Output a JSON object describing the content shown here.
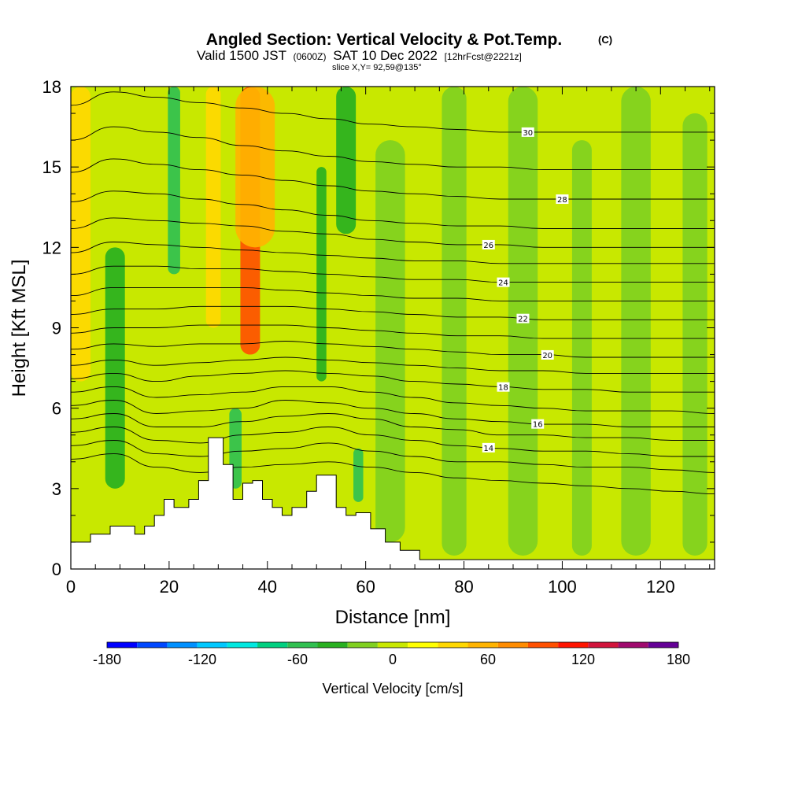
{
  "chart_data": {
    "type": "heatmap",
    "title": "Angled Section: Vertical Velocity & Pot.Temp.",
    "title_unit": "(C)",
    "subtitle_parts": [
      "Valid 1500 JST",
      "(0600Z)",
      "SAT 10 Dec 2022",
      "[12hrFcst@2221z]"
    ],
    "slice_text": "slice X,Y= 92,59@135°",
    "xlabel": "Distance [nm]",
    "ylabel": "Height [Kft MSL]",
    "xlim": [
      0,
      131
    ],
    "ylim": [
      0,
      18
    ],
    "x_ticks": [
      0,
      20,
      40,
      60,
      80,
      100,
      120
    ],
    "y_ticks": [
      0,
      3,
      6,
      9,
      12,
      15,
      18
    ],
    "grid": false,
    "colorbar": {
      "label": "Vertical Velocity [cm/s]",
      "ticks": [
        -180,
        -120,
        -60,
        0,
        60,
        120,
        180
      ],
      "levels": [
        -180,
        -160,
        -140,
        -120,
        -100,
        -80,
        -60,
        -40,
        -20,
        0,
        20,
        40,
        60,
        80,
        100,
        120,
        140,
        160,
        180
      ],
      "colors": [
        "#0000ff",
        "#0048ff",
        "#0090ff",
        "#00c8ff",
        "#00e8e0",
        "#00d080",
        "#30c050",
        "#28b020",
        "#80d020",
        "#c8e800",
        "#ffff00",
        "#ffd800",
        "#ffb400",
        "#ff8c00",
        "#ff5000",
        "#ff1400",
        "#d2143c",
        "#a00a6e",
        "#640096"
      ]
    },
    "terrain_kft": {
      "x": [
        0,
        4,
        8,
        13,
        15,
        17,
        19,
        21,
        24,
        26,
        28,
        31,
        33,
        35,
        37,
        39,
        41,
        43,
        45,
        48,
        50,
        54,
        56,
        58,
        61,
        64,
        67,
        71,
        80,
        131
      ],
      "height": [
        1.0,
        1.3,
        1.6,
        1.3,
        1.6,
        2.0,
        2.6,
        2.3,
        2.6,
        3.3,
        4.9,
        3.9,
        2.6,
        3.2,
        3.3,
        2.6,
        2.3,
        2.0,
        2.3,
        2.9,
        3.5,
        2.3,
        2.0,
        2.1,
        1.5,
        1.0,
        0.7,
        0.35,
        0.35,
        0.35
      ]
    },
    "vertical_velocity_bands": [
      {
        "x": 2,
        "w": 4,
        "top": 18,
        "bottom": 7,
        "value": 50
      },
      {
        "x": 9,
        "w": 4,
        "top": 12,
        "bottom": 3,
        "value": -30
      },
      {
        "x": 21,
        "w": 2.5,
        "top": 18,
        "bottom": 11,
        "value": -60
      },
      {
        "x": 29,
        "w": 3,
        "top": 18,
        "bottom": 9,
        "value": 40
      },
      {
        "x": 36.5,
        "w": 4,
        "top": 18,
        "bottom": 8,
        "value": 100
      },
      {
        "x": 37.5,
        "w": 8,
        "top": 18,
        "bottom": 12,
        "value": 60
      },
      {
        "x": 33.5,
        "w": 2.5,
        "top": 6,
        "bottom": 3,
        "value": -60
      },
      {
        "x": 56,
        "w": 4,
        "top": 18,
        "bottom": 12.5,
        "value": -40
      },
      {
        "x": 51,
        "w": 2,
        "top": 15,
        "bottom": 7,
        "value": -30
      },
      {
        "x": 58.5,
        "w": 2,
        "top": 4.5,
        "bottom": 2.5,
        "value": -60
      },
      {
        "x": 65,
        "w": 6,
        "top": 16,
        "bottom": 1,
        "value": -20
      },
      {
        "x": 78,
        "w": 5,
        "top": 18,
        "bottom": 0.5,
        "value": -20
      },
      {
        "x": 92,
        "w": 6,
        "top": 18,
        "bottom": 0.5,
        "value": -20
      },
      {
        "x": 104,
        "w": 4,
        "top": 16,
        "bottom": 0.5,
        "value": -20
      },
      {
        "x": 115,
        "w": 6,
        "top": 18,
        "bottom": 0.5,
        "value": -20
      },
      {
        "x": 127,
        "w": 5,
        "top": 17,
        "bottom": 0.5,
        "value": -20
      }
    ],
    "theta_contours": [
      {
        "value": 12,
        "y": [
          4.1,
          4.3,
          3.8,
          3.6,
          3.8,
          3.9,
          4.0,
          3.8,
          3.6,
          3.4,
          3.3,
          3.2,
          3.1,
          3.0,
          2.9,
          2.8
        ],
        "label_x": null
      },
      {
        "value": 13,
        "y": [
          4.6,
          4.8,
          4.3,
          4.2,
          4.4,
          4.5,
          4.7,
          4.4,
          4.2,
          4.0,
          4.0,
          3.9,
          3.8,
          3.8,
          3.7,
          3.6
        ],
        "label_x": null
      },
      {
        "value": 14,
        "y": [
          5.1,
          5.3,
          4.8,
          4.7,
          5.0,
          5.1,
          5.3,
          5.0,
          4.8,
          4.6,
          4.5,
          4.4,
          4.4,
          4.3,
          4.2,
          4.2
        ],
        "label_x": 85
      },
      {
        "value": 15,
        "y": [
          5.6,
          5.8,
          5.3,
          5.3,
          5.5,
          5.7,
          5.8,
          5.6,
          5.3,
          5.2,
          5.0,
          5.0,
          4.9,
          4.9,
          4.8,
          4.8
        ],
        "label_x": null
      },
      {
        "value": 16,
        "y": [
          6.1,
          6.3,
          5.8,
          5.9,
          6.0,
          6.3,
          6.2,
          6.0,
          5.8,
          5.6,
          5.5,
          5.4,
          5.4,
          5.3,
          5.3,
          5.3
        ],
        "label_x": 95
      },
      {
        "value": 17,
        "y": [
          6.6,
          6.8,
          6.4,
          6.5,
          6.6,
          6.8,
          6.8,
          6.6,
          6.4,
          6.2,
          6.1,
          6.0,
          5.9,
          5.9,
          5.9,
          5.8
        ],
        "label_x": null
      },
      {
        "value": 18,
        "y": [
          7.1,
          7.3,
          7.0,
          7.2,
          7.3,
          7.4,
          7.3,
          7.2,
          7.0,
          6.9,
          6.8,
          6.7,
          6.7,
          6.6,
          6.6,
          6.6
        ],
        "label_x": 88
      },
      {
        "value": 19,
        "y": [
          7.6,
          7.8,
          7.6,
          7.7,
          7.8,
          7.9,
          7.8,
          7.7,
          7.6,
          7.5,
          7.4,
          7.4,
          7.3,
          7.3,
          7.3,
          7.3
        ],
        "label_x": null
      },
      {
        "value": 20,
        "y": [
          8.2,
          8.4,
          8.3,
          8.4,
          8.4,
          8.5,
          8.4,
          8.3,
          8.2,
          8.1,
          8.0,
          8.0,
          7.9,
          7.9,
          7.9,
          7.9
        ],
        "label_x": 97
      },
      {
        "value": 21,
        "y": [
          8.8,
          9.0,
          9.0,
          9.1,
          9.1,
          9.1,
          9.0,
          8.9,
          8.8,
          8.7,
          8.7,
          8.6,
          8.6,
          8.6,
          8.6,
          8.6
        ],
        "label_x": null
      },
      {
        "value": 22,
        "y": [
          9.5,
          9.7,
          9.7,
          9.8,
          9.8,
          9.8,
          9.7,
          9.6,
          9.5,
          9.4,
          9.4,
          9.3,
          9.3,
          9.3,
          9.3,
          9.3
        ],
        "label_x": 92
      },
      {
        "value": 23,
        "y": [
          10.2,
          10.5,
          10.5,
          10.5,
          10.5,
          10.4,
          10.3,
          10.2,
          10.1,
          10.1,
          10.0,
          10.0,
          10.0,
          10.0,
          10.0,
          10.0
        ],
        "label_x": null
      },
      {
        "value": 24,
        "y": [
          11.0,
          11.3,
          11.3,
          11.2,
          11.2,
          11.1,
          11.0,
          10.9,
          10.8,
          10.8,
          10.7,
          10.7,
          10.7,
          10.7,
          10.7,
          10.7
        ],
        "label_x": 88
      },
      {
        "value": 25,
        "y": [
          11.8,
          12.2,
          12.1,
          12.0,
          11.9,
          11.8,
          11.7,
          11.6,
          11.5,
          11.5,
          11.4,
          11.4,
          11.4,
          11.4,
          11.4,
          11.4
        ],
        "label_x": null
      },
      {
        "value": 26,
        "y": [
          12.7,
          13.1,
          13.0,
          12.9,
          12.8,
          12.6,
          12.5,
          12.3,
          12.2,
          12.1,
          12.1,
          12.0,
          12.0,
          12.0,
          12.0,
          12.0
        ],
        "label_x": 85
      },
      {
        "value": 27,
        "y": [
          13.7,
          14.1,
          14.0,
          13.8,
          13.6,
          13.4,
          13.2,
          13.0,
          12.9,
          12.8,
          12.8,
          12.7,
          12.7,
          12.7,
          12.7,
          12.7
        ],
        "label_x": null
      },
      {
        "value": 28,
        "y": [
          14.8,
          15.3,
          15.1,
          14.9,
          14.7,
          14.5,
          14.3,
          14.1,
          14.0,
          13.9,
          13.8,
          13.8,
          13.8,
          13.8,
          13.8,
          13.8
        ],
        "label_x": 100
      },
      {
        "value": 29,
        "y": [
          16.0,
          16.5,
          16.3,
          16.1,
          15.8,
          15.6,
          15.4,
          15.2,
          15.1,
          15.0,
          15.0,
          14.9,
          14.9,
          14.9,
          14.9,
          14.9
        ],
        "label_x": null
      },
      {
        "value": 30,
        "y": [
          17.3,
          17.8,
          17.6,
          17.4,
          17.2,
          17.0,
          16.8,
          16.6,
          16.5,
          16.4,
          16.3,
          16.3,
          16.3,
          16.3,
          16.3,
          16.3
        ],
        "label_x": 93
      }
    ]
  }
}
